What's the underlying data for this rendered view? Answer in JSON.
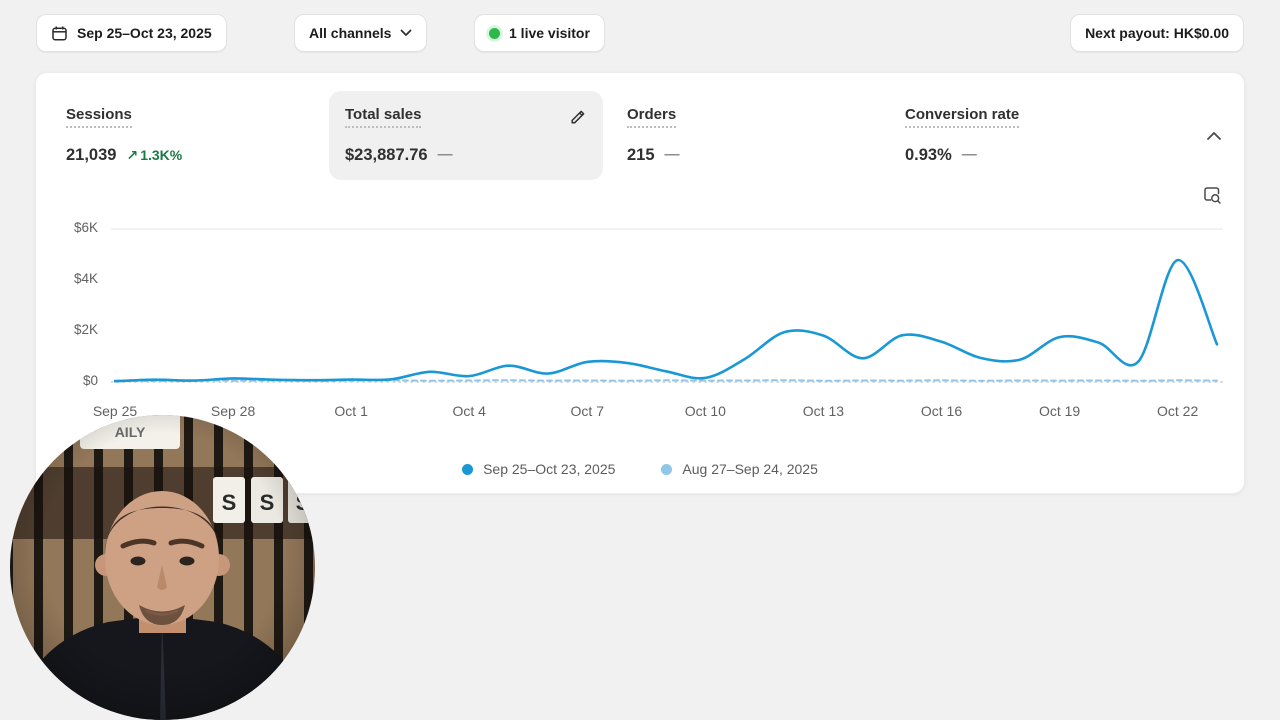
{
  "topbar": {
    "date_range": "Sep 25–Oct 23, 2025",
    "channels": "All channels",
    "live_visitors": "1 live visitor",
    "next_payout": "Next payout: HK$0.00"
  },
  "icons": {
    "trend_up": "↗"
  },
  "colors": {
    "accent_blue": "#1a98d5",
    "prev_period_blue": "#92c5ea",
    "positive_green": "#1a7a46",
    "live_green": "#2db84c"
  },
  "metrics": [
    {
      "label": "Sessions",
      "value": "21,039",
      "delta": "1.3K%"
    },
    {
      "label": "Total sales",
      "value": "$23,887.76",
      "comparison": "—"
    },
    {
      "label": "Orders",
      "value": "215",
      "comparison": "—"
    },
    {
      "label": "Conversion rate",
      "value": "0.93%",
      "comparison": "—"
    }
  ],
  "chart_data": {
    "type": "line",
    "title": "Total sales",
    "ylim": [
      0,
      6000
    ],
    "y_ticks": [
      "$0",
      "$2K",
      "$4K",
      "$6K"
    ],
    "x_ticks": [
      "Sep 25",
      "Sep 28",
      "Oct 1",
      "Oct 4",
      "Oct 7",
      "Oct 10",
      "Oct 13",
      "Oct 16",
      "Oct 19",
      "Oct 22"
    ],
    "x_tick_indices": [
      0,
      3,
      6,
      9,
      12,
      15,
      18,
      21,
      24,
      27
    ],
    "grid": "top-line-and-dotted-baseline",
    "legend_position": "bottom-center",
    "series": [
      {
        "name": "Sep 25–Oct 23, 2025",
        "style": "solid",
        "color": "#1a98d5",
        "values": [
          30,
          90,
          55,
          140,
          90,
          70,
          95,
          100,
          400,
          230,
          640,
          330,
          790,
          750,
          420,
          160,
          900,
          1950,
          1820,
          930,
          1830,
          1580,
          940,
          880,
          1760,
          1540,
          800,
          4780,
          1480
        ]
      },
      {
        "name": "Aug 27–Sep 24, 2025",
        "style": "dashed",
        "color": "#92c5ea",
        "values": [
          60,
          40,
          70,
          50,
          60,
          45,
          55,
          65,
          50,
          60,
          70,
          55,
          60,
          50,
          65,
          55,
          60,
          70,
          50,
          60,
          55,
          65,
          50,
          60,
          55,
          60,
          50,
          65,
          55
        ]
      }
    ]
  },
  "webcam": {
    "sign_text": "AILY"
  }
}
